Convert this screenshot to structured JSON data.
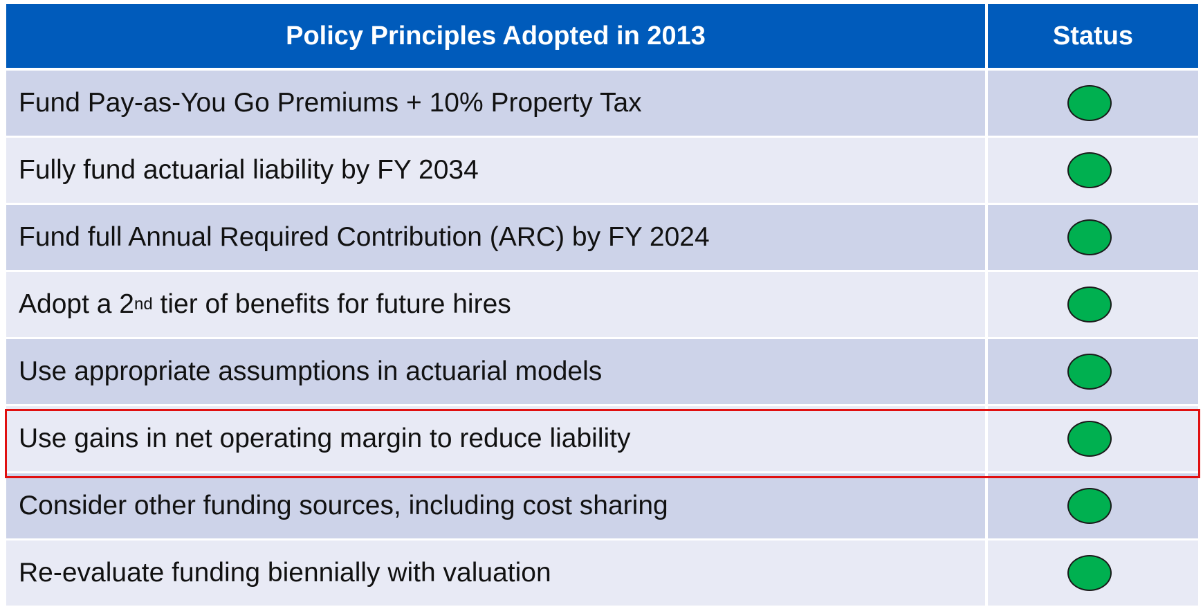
{
  "table": {
    "header": [
      "Policy Principles Adopted in 2013",
      "Status"
    ],
    "rows": [
      [
        "Fund Pay-as-You Go Premiums + 10% Property Tax"
      ],
      [
        "Fully fund actuarial liability by FY 2034"
      ],
      [
        "Fund full Annual Required Contribution (ARC) by FY 2024"
      ],
      [
        "Adopt a 2",
        "nd",
        " tier of benefits for future hires"
      ],
      [
        "Use appropriate assumptions in actuarial models"
      ],
      [
        "Use gains in net operating margin to reduce liability"
      ],
      [
        "Consider other funding sources, including cost sharing"
      ],
      [
        "Re-evaluate funding biennially with valuation"
      ]
    ]
  }
}
